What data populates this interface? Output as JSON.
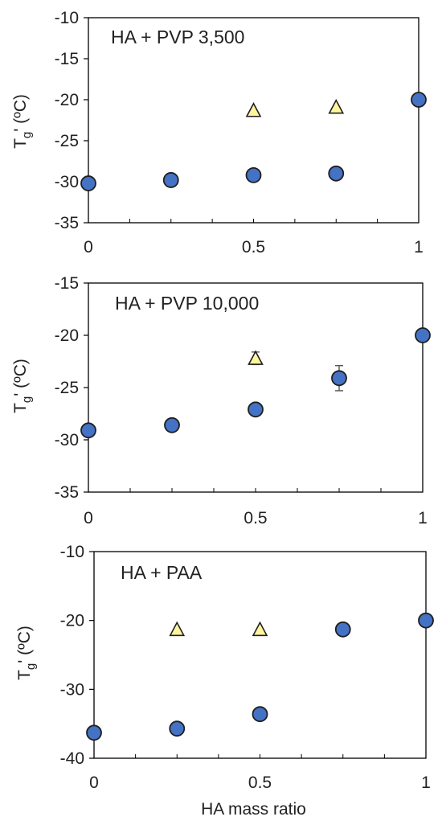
{
  "chart_data": [
    {
      "type": "scatter",
      "annotation": "HA + PVP 3,500",
      "ylabel_main": "T",
      "ylabel_sub": "g",
      "ylabel_rest": "' (ºC)",
      "xlim": [
        0,
        1
      ],
      "ylim": [
        -35,
        -10
      ],
      "x_ticks": [
        "0",
        "0.5",
        "1"
      ],
      "y_ticks": [
        "-10",
        "-15",
        "-20",
        "-25",
        "-30",
        "-35"
      ],
      "series": [
        {
          "marker": "circle",
          "color": "#4472C4",
          "points": [
            {
              "x": 0,
              "y": -30.2
            },
            {
              "x": 0.25,
              "y": -29.8
            },
            {
              "x": 0.5,
              "y": -29.2
            },
            {
              "x": 0.75,
              "y": -29.0
            },
            {
              "x": 1,
              "y": -20.0
            }
          ]
        },
        {
          "marker": "triangle",
          "color": "#FFF59D",
          "points": [
            {
              "x": 0.5,
              "y": -21.3
            },
            {
              "x": 0.75,
              "y": -20.9
            }
          ]
        }
      ]
    },
    {
      "type": "scatter",
      "annotation": "HA + PVP 10,000",
      "ylabel_main": "T",
      "ylabel_sub": "g",
      "ylabel_rest": "' (ºC)",
      "xlim": [
        0,
        1
      ],
      "ylim": [
        -35,
        -15
      ],
      "x_ticks": [
        "0",
        "0.5",
        "1"
      ],
      "y_ticks": [
        "-15",
        "-20",
        "-25",
        "-30",
        "-35"
      ],
      "series": [
        {
          "marker": "circle",
          "color": "#4472C4",
          "points": [
            {
              "x": 0,
              "y": -29.1
            },
            {
              "x": 0.25,
              "y": -28.6
            },
            {
              "x": 0.5,
              "y": -27.1
            },
            {
              "x": 0.75,
              "y": -24.1,
              "err": 1.2
            },
            {
              "x": 1,
              "y": -20.0
            }
          ]
        },
        {
          "marker": "triangle",
          "color": "#FFF59D",
          "points": [
            {
              "x": 0.5,
              "y": -22.2,
              "err": 0.6
            }
          ]
        }
      ]
    },
    {
      "type": "scatter",
      "annotation": "HA + PAA",
      "ylabel_main": "T",
      "ylabel_sub": "g",
      "ylabel_rest": "' (ºC)",
      "xlabel": "HA mass ratio",
      "xlim": [
        0,
        1
      ],
      "ylim": [
        -40,
        -10
      ],
      "x_ticks": [
        "0",
        "0.5",
        "1"
      ],
      "y_ticks": [
        "-10",
        "-20",
        "-30",
        "-40"
      ],
      "series": [
        {
          "marker": "circle",
          "color": "#4472C4",
          "points": [
            {
              "x": 0,
              "y": -36.3
            },
            {
              "x": 0.25,
              "y": -35.7
            },
            {
              "x": 0.5,
              "y": -33.6
            },
            {
              "x": 0.75,
              "y": -21.3
            },
            {
              "x": 1,
              "y": -20.0
            }
          ]
        },
        {
          "marker": "triangle",
          "color": "#FFF59D",
          "points": [
            {
              "x": 0.25,
              "y": -21.3
            },
            {
              "x": 0.5,
              "y": -21.3
            }
          ]
        }
      ]
    }
  ]
}
